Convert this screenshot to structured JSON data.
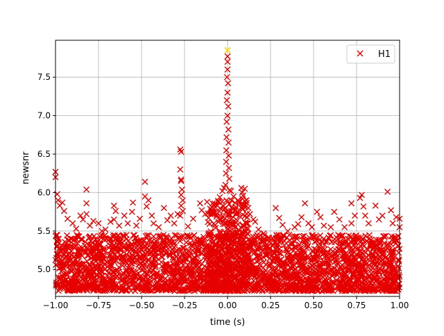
{
  "chart_data": {
    "type": "scatter",
    "title": "",
    "xlabel": "time (s)",
    "ylabel": "newsnr",
    "xlim": [
      -1.0,
      1.0
    ],
    "ylim": [
      4.65,
      7.98
    ],
    "grid": true,
    "legend_placement": "top-right",
    "x_ticks": [
      {
        "value": -1.0,
        "label": "−1.00"
      },
      {
        "value": -0.75,
        "label": "−0.75"
      },
      {
        "value": -0.5,
        "label": "−0.50"
      },
      {
        "value": -0.25,
        "label": "−0.25"
      },
      {
        "value": 0.0,
        "label": "0.00"
      },
      {
        "value": 0.25,
        "label": "0.25"
      },
      {
        "value": 0.5,
        "label": "0.50"
      },
      {
        "value": 0.75,
        "label": "0.75"
      },
      {
        "value": 1.0,
        "label": "1.00"
      }
    ],
    "y_ticks": [
      {
        "value": 5.0,
        "label": "5.0"
      },
      {
        "value": 5.5,
        "label": "5.5"
      },
      {
        "value": 6.0,
        "label": "6.0"
      },
      {
        "value": 6.5,
        "label": "6.5"
      },
      {
        "value": 7.0,
        "label": "7.0"
      },
      {
        "value": 7.5,
        "label": "7.5"
      }
    ],
    "series": [
      {
        "name": "H1",
        "color": "#e60000",
        "marker": "x",
        "dense_floor": 4.72,
        "dense_band_top": 5.45,
        "points": [
          [
            -1.0,
            6.27
          ],
          [
            -1.0,
            6.2
          ],
          [
            -0.99,
            5.98
          ],
          [
            -0.985,
            5.9
          ],
          [
            -0.975,
            5.83
          ],
          [
            -0.96,
            5.87
          ],
          [
            -0.95,
            5.76
          ],
          [
            -0.93,
            5.66
          ],
          [
            -0.9,
            5.6
          ],
          [
            -0.88,
            5.53
          ],
          [
            -0.855,
            5.7
          ],
          [
            -0.84,
            5.65
          ],
          [
            -0.82,
            6.04
          ],
          [
            -0.82,
            5.86
          ],
          [
            -0.82,
            5.72
          ],
          [
            -0.8,
            5.57
          ],
          [
            -0.78,
            5.63
          ],
          [
            -0.75,
            5.6
          ],
          [
            -0.73,
            5.5
          ],
          [
            -0.71,
            5.52
          ],
          [
            -0.68,
            5.62
          ],
          [
            -0.66,
            5.65
          ],
          [
            -0.66,
            5.83
          ],
          [
            -0.65,
            5.76
          ],
          [
            -0.63,
            5.57
          ],
          [
            -0.6,
            5.7
          ],
          [
            -0.58,
            5.6
          ],
          [
            -0.555,
            5.75
          ],
          [
            -0.55,
            5.87
          ],
          [
            -0.53,
            5.57
          ],
          [
            -0.51,
            5.66
          ],
          [
            -0.48,
            6.14
          ],
          [
            -0.48,
            5.95
          ],
          [
            -0.47,
            5.82
          ],
          [
            -0.46,
            5.9
          ],
          [
            -0.44,
            5.7
          ],
          [
            -0.43,
            5.6
          ],
          [
            -0.4,
            5.55
          ],
          [
            -0.37,
            5.8
          ],
          [
            -0.35,
            5.64
          ],
          [
            -0.33,
            5.7
          ],
          [
            -0.31,
            5.6
          ],
          [
            -0.29,
            5.72
          ],
          [
            -0.275,
            6.56
          ],
          [
            -0.27,
            6.53
          ],
          [
            -0.275,
            6.3
          ],
          [
            -0.27,
            6.17
          ],
          [
            -0.27,
            6.15
          ],
          [
            -0.265,
            6.04
          ],
          [
            -0.27,
            5.97
          ],
          [
            -0.26,
            5.9
          ],
          [
            -0.27,
            5.83
          ],
          [
            -0.26,
            5.76
          ],
          [
            -0.275,
            5.7
          ],
          [
            -0.23,
            5.56
          ],
          [
            -0.2,
            5.66
          ],
          [
            -0.16,
            5.86
          ],
          [
            -0.15,
            5.77
          ],
          [
            -0.13,
            5.72
          ],
          [
            -0.11,
            5.67
          ],
          [
            -0.09,
            5.77
          ],
          [
            -0.06,
            5.83
          ],
          [
            -0.045,
            5.94
          ],
          [
            -0.03,
            6.02
          ],
          [
            -0.02,
            6.06
          ],
          [
            0.0,
            7.85
          ],
          [
            0.0,
            7.77
          ],
          [
            0.0,
            7.7
          ],
          [
            0.0,
            7.6
          ],
          [
            -0.003,
            7.5
          ],
          [
            0.003,
            7.42
          ],
          [
            0.0,
            7.3
          ],
          [
            -0.004,
            7.2
          ],
          [
            0.004,
            7.12
          ],
          [
            0.0,
            7.0
          ],
          [
            -0.005,
            6.92
          ],
          [
            0.005,
            6.82
          ],
          [
            -0.006,
            6.72
          ],
          [
            0.006,
            6.65
          ],
          [
            -0.007,
            6.55
          ],
          [
            0.007,
            6.48
          ],
          [
            -0.008,
            6.4
          ],
          [
            0.008,
            6.32
          ],
          [
            -0.009,
            6.25
          ],
          [
            0.01,
            6.18
          ],
          [
            -0.012,
            6.1
          ],
          [
            0.012,
            6.03
          ],
          [
            0.02,
            6.02
          ],
          [
            0.035,
            5.95
          ],
          [
            0.06,
            5.9
          ],
          [
            0.08,
            6.06
          ],
          [
            0.085,
            6.0
          ],
          [
            0.09,
            5.96
          ],
          [
            0.1,
            6.05
          ],
          [
            0.11,
            5.9
          ],
          [
            0.12,
            5.8
          ],
          [
            0.13,
            5.72
          ],
          [
            0.15,
            5.65
          ],
          [
            0.16,
            5.62
          ],
          [
            0.18,
            5.52
          ],
          [
            0.21,
            5.47
          ],
          [
            0.24,
            5.4
          ],
          [
            0.28,
            5.8
          ],
          [
            0.3,
            5.67
          ],
          [
            0.32,
            5.58
          ],
          [
            0.35,
            5.5
          ],
          [
            0.39,
            5.55
          ],
          [
            0.41,
            5.59
          ],
          [
            0.43,
            5.68
          ],
          [
            0.45,
            5.86
          ],
          [
            0.47,
            5.6
          ],
          [
            0.49,
            5.55
          ],
          [
            0.52,
            5.75
          ],
          [
            0.54,
            5.68
          ],
          [
            0.56,
            5.57
          ],
          [
            0.6,
            5.55
          ],
          [
            0.62,
            5.75
          ],
          [
            0.65,
            5.65
          ],
          [
            0.68,
            5.55
          ],
          [
            0.72,
            5.86
          ],
          [
            0.72,
            5.6
          ],
          [
            0.74,
            5.7
          ],
          [
            0.77,
            5.93
          ],
          [
            0.78,
            5.97
          ],
          [
            0.79,
            5.82
          ],
          [
            0.8,
            5.7
          ],
          [
            0.82,
            5.6
          ],
          [
            0.86,
            5.83
          ],
          [
            0.88,
            5.65
          ],
          [
            0.9,
            5.7
          ],
          [
            0.93,
            6.01
          ],
          [
            0.95,
            5.77
          ],
          [
            0.96,
            5.6
          ],
          [
            0.98,
            5.68
          ],
          [
            1.0,
            5.66
          ],
          [
            1.0,
            5.55
          ]
        ]
      }
    ],
    "highlight": {
      "x": 0.0,
      "y": 7.85,
      "color": "#ffee00"
    }
  }
}
